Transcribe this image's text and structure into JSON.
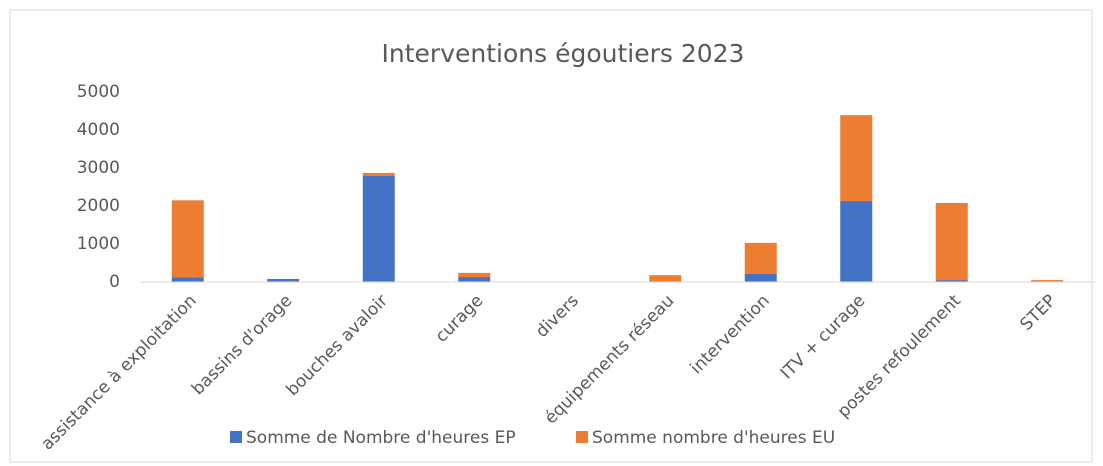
{
  "chart_data": {
    "type": "stacked_bar",
    "title": "Interventions égoutiers 2023",
    "categories": [
      "assistance à exploitation",
      "bassins d'orage",
      "bouches avaloir",
      "curage",
      "divers",
      "équipements réseau",
      "intervention",
      "ITV + curage",
      "postes refoulement",
      "STEP"
    ],
    "series": [
      {
        "name": "Somme de Nombre d'heures EP",
        "color": "#4472c4",
        "values": [
          120,
          80,
          2790,
          130,
          0,
          10,
          210,
          2130,
          50,
          0
        ]
      },
      {
        "name": "Somme nombre d'heures EU",
        "color": "#ed7d31",
        "values": [
          2030,
          0,
          80,
          110,
          0,
          170,
          820,
          2260,
          2030,
          50
        ]
      }
    ],
    "ylim": [
      0,
      5000
    ],
    "yticks": [
      0,
      1000,
      2000,
      3000,
      4000,
      5000
    ],
    "grid": false,
    "legend": "bottom"
  }
}
